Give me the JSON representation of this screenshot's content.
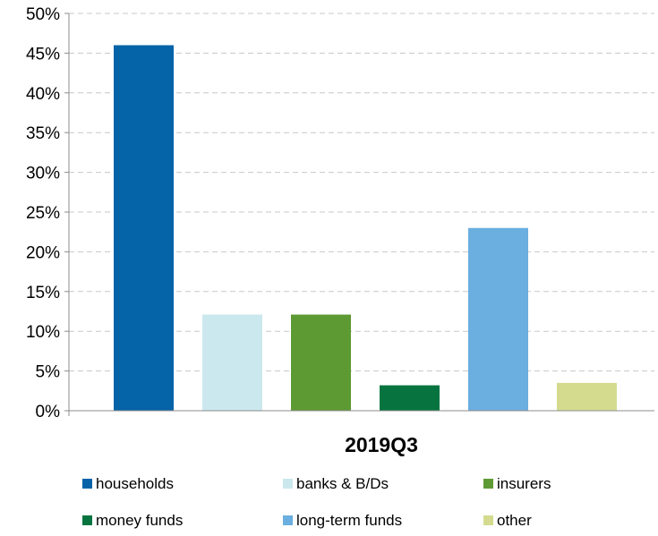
{
  "chart_data": {
    "type": "bar",
    "categories": [
      "2019Q3"
    ],
    "xlabel": "2019Q3",
    "ylim": [
      0,
      50
    ],
    "y_ticks": [
      "0%",
      "5%",
      "10%",
      "15%",
      "20%",
      "25%",
      "30%",
      "35%",
      "40%",
      "45%",
      "50%"
    ],
    "y_tick_values": [
      0,
      5,
      10,
      15,
      20,
      25,
      30,
      35,
      40,
      45,
      50
    ],
    "grid": true,
    "legend_position": "bottom",
    "series": [
      {
        "name": "households",
        "values": [
          46
        ],
        "color": "#0563A8"
      },
      {
        "name": "banks & B/Ds",
        "values": [
          12.1
        ],
        "color": "#CBE8EE"
      },
      {
        "name": "insurers",
        "values": [
          12.1
        ],
        "color": "#5E9A34"
      },
      {
        "name": "money funds",
        "values": [
          3.2
        ],
        "color": "#077440"
      },
      {
        "name": "long-term funds",
        "values": [
          23
        ],
        "color": "#6BAEE0"
      },
      {
        "name": "other",
        "values": [
          3.5
        ],
        "color": "#D4DB8E"
      }
    ]
  }
}
